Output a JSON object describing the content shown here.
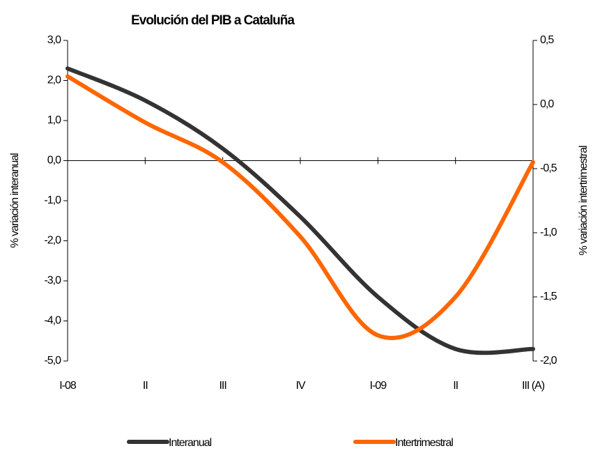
{
  "chart_data": {
    "type": "line",
    "title": "Evolución del PIB a Cataluña",
    "categories": [
      "I-08",
      "II",
      "III",
      "IV",
      "I-09",
      "II",
      "III (A)"
    ],
    "ylabel": "% variación  interanual",
    "y2label": "% variación intertrimestral",
    "ylim": [
      -5,
      3
    ],
    "yticks": [
      {
        "value": 3,
        "label": "3,0"
      },
      {
        "value": 2,
        "label": "2,0"
      },
      {
        "value": 1,
        "label": "1,0"
      },
      {
        "value": 0,
        "label": "0,0"
      },
      {
        "value": -1,
        "label": "-1,0"
      },
      {
        "value": -2,
        "label": "-2,0"
      },
      {
        "value": -3,
        "label": "-3,0"
      },
      {
        "value": -4,
        "label": "-4,0"
      },
      {
        "value": -5,
        "label": "-5,0"
      }
    ],
    "y2lim": [
      -2,
      0.5
    ],
    "y2ticks": [
      {
        "value": 0.5,
        "label": "0,5"
      },
      {
        "value": 0,
        "label": "0,0"
      },
      {
        "value": -0.5,
        "label": "-0,5"
      },
      {
        "value": -1,
        "label": "-1,0"
      },
      {
        "value": -1.5,
        "label": "-1,5"
      },
      {
        "value": -2,
        "label": "-2,0"
      }
    ],
    "series": [
      {
        "name": "Interanual",
        "color": "#333333",
        "values": [
          2.3,
          1.5,
          0.3,
          -1.4,
          -3.4,
          -4.7,
          -4.7
        ]
      },
      {
        "name": "Intertrimestral",
        "color": "#ff6600",
        "axis": "y2",
        "values": [
          0.22,
          -0.14,
          -0.45,
          -1.03,
          -1.8,
          -1.5,
          -0.45
        ]
      }
    ]
  }
}
